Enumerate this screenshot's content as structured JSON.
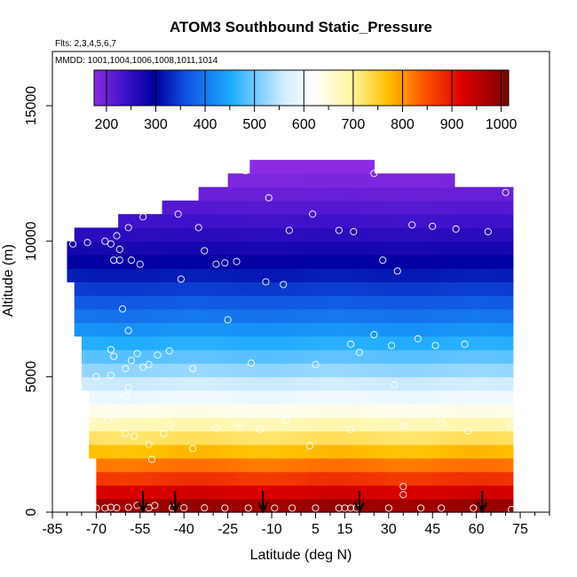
{
  "chart_data": {
    "type": "heatmap",
    "title": "ATOM3 Southbound Static_Pressure",
    "flights_label": "Flts: 2,3,4,5,6,7",
    "dates_label": "MMDD: 1001,1004,1006,1008,1011,1014",
    "xlabel": "Latitude (deg N)",
    "ylabel": "Altitude (m)",
    "xlim": [
      -85,
      85
    ],
    "ylim": [
      0,
      17000
    ],
    "x_ticks": [
      -85,
      -70,
      -55,
      -40,
      -25,
      -10,
      5,
      15,
      30,
      45,
      60,
      75
    ],
    "y_ticks": [
      0,
      5000,
      10000,
      15000
    ],
    "colorbar": {
      "min": 175,
      "max": 1015,
      "ticks": [
        200,
        300,
        400,
        500,
        600,
        700,
        800,
        900,
        1000
      ],
      "stops": [
        {
          "v": 175,
          "c": "#8a2be2"
        },
        {
          "v": 240,
          "c": "#3a10c8"
        },
        {
          "v": 300,
          "c": "#0000a0"
        },
        {
          "v": 360,
          "c": "#1050e0"
        },
        {
          "v": 450,
          "c": "#1aaaff"
        },
        {
          "v": 560,
          "c": "#d2ecff"
        },
        {
          "v": 620,
          "c": "#ffffff"
        },
        {
          "v": 700,
          "c": "#fff49a"
        },
        {
          "v": 770,
          "c": "#ffc000"
        },
        {
          "v": 840,
          "c": "#ff5a00"
        },
        {
          "v": 920,
          "c": "#dd0000"
        },
        {
          "v": 1015,
          "c": "#7a0000"
        }
      ]
    },
    "pressure_profile": [
      {
        "alt": 0,
        "p": 1012
      },
      {
        "alt": 1000,
        "p": 899
      },
      {
        "alt": 2000,
        "p": 795
      },
      {
        "alt": 3000,
        "p": 701
      },
      {
        "alt": 4000,
        "p": 616
      },
      {
        "alt": 5000,
        "p": 540
      },
      {
        "alt": 6000,
        "p": 472
      },
      {
        "alt": 7000,
        "p": 411
      },
      {
        "alt": 8000,
        "p": 356
      },
      {
        "alt": 9000,
        "p": 308
      },
      {
        "alt": 10000,
        "p": 265
      },
      {
        "alt": 11000,
        "p": 227
      },
      {
        "alt": 12000,
        "p": 194
      },
      {
        "alt": 13000,
        "p": 165
      }
    ],
    "curtain_top": [
      {
        "lat": -80,
        "alt": 10000
      },
      {
        "lat": -70,
        "alt": 10300
      },
      {
        "lat": -62,
        "alt": 10600
      },
      {
        "lat": -55,
        "alt": 10900
      },
      {
        "lat": -48,
        "alt": 11100
      },
      {
        "lat": -40,
        "alt": 11400
      },
      {
        "lat": -30,
        "alt": 11800
      },
      {
        "lat": -25,
        "alt": 12100
      },
      {
        "lat": -20,
        "alt": 12500
      },
      {
        "lat": -5,
        "alt": 12900
      },
      {
        "lat": 20,
        "alt": 12900
      },
      {
        "lat": 25,
        "alt": 12500
      },
      {
        "lat": 47,
        "alt": 12200
      },
      {
        "lat": 52,
        "alt": 12100
      },
      {
        "lat": 71,
        "alt": 11900
      }
    ],
    "curtain_bottom": [
      {
        "lat": -80,
        "alt": 9800
      },
      {
        "lat": -74,
        "alt": 5000
      },
      {
        "lat": -71,
        "alt": 2000
      },
      {
        "lat": -70,
        "alt": 0
      },
      {
        "lat": 71,
        "alt": 0
      }
    ],
    "sample_points": [
      {
        "lat": -70,
        "alt": 150
      },
      {
        "lat": -67,
        "alt": 150
      },
      {
        "lat": -65,
        "alt": 180
      },
      {
        "lat": -63,
        "alt": 160
      },
      {
        "lat": -59,
        "alt": 180
      },
      {
        "lat": -56,
        "alt": 250
      },
      {
        "lat": -52,
        "alt": 160
      },
      {
        "lat": -50,
        "alt": 250
      },
      {
        "lat": -44,
        "alt": 160
      },
      {
        "lat": -40,
        "alt": 160
      },
      {
        "lat": -33,
        "alt": 160
      },
      {
        "lat": -26,
        "alt": 150
      },
      {
        "lat": -18,
        "alt": 150
      },
      {
        "lat": -9,
        "alt": 150
      },
      {
        "lat": -3,
        "alt": 150
      },
      {
        "lat": 5,
        "alt": 150
      },
      {
        "lat": 13,
        "alt": 150
      },
      {
        "lat": 15,
        "alt": 150
      },
      {
        "lat": 17,
        "alt": 150
      },
      {
        "lat": 19,
        "alt": 150
      },
      {
        "lat": 30,
        "alt": 150
      },
      {
        "lat": 35,
        "alt": 650
      },
      {
        "lat": 35,
        "alt": 950
      },
      {
        "lat": 41,
        "alt": 150
      },
      {
        "lat": 48,
        "alt": 150
      },
      {
        "lat": 59,
        "alt": 150
      },
      {
        "lat": 72,
        "alt": 100
      },
      {
        "lat": -71,
        "alt": 3300
      },
      {
        "lat": -66,
        "alt": 3400
      },
      {
        "lat": -64,
        "alt": 3500
      },
      {
        "lat": -60,
        "alt": 2900
      },
      {
        "lat": -57,
        "alt": 2800
      },
      {
        "lat": -52,
        "alt": 2500
      },
      {
        "lat": -51,
        "alt": 1950
      },
      {
        "lat": -47,
        "alt": 2900
      },
      {
        "lat": -45,
        "alt": 3200
      },
      {
        "lat": -37,
        "alt": 2350
      },
      {
        "lat": -29,
        "alt": 3100
      },
      {
        "lat": -21,
        "alt": 3200
      },
      {
        "lat": -14,
        "alt": 3050
      },
      {
        "lat": -5,
        "alt": 3400
      },
      {
        "lat": 3,
        "alt": 2450
      },
      {
        "lat": 17,
        "alt": 3050
      },
      {
        "lat": 35,
        "alt": 3200
      },
      {
        "lat": 48,
        "alt": 3300
      },
      {
        "lat": 57,
        "alt": 3000
      },
      {
        "lat": 72,
        "alt": 3200
      },
      {
        "lat": 5,
        "alt": 3600
      },
      {
        "lat": 34,
        "alt": 4150
      },
      {
        "lat": -70,
        "alt": 5000
      },
      {
        "lat": -65,
        "alt": 5050
      },
      {
        "lat": -60,
        "alt": 5300
      },
      {
        "lat": -58,
        "alt": 5600
      },
      {
        "lat": -56,
        "alt": 5850
      },
      {
        "lat": -54,
        "alt": 5350
      },
      {
        "lat": -52,
        "alt": 5450
      },
      {
        "lat": -49,
        "alt": 5800
      },
      {
        "lat": -45,
        "alt": 5950
      },
      {
        "lat": -37,
        "alt": 5300
      },
      {
        "lat": -17,
        "alt": 5500
      },
      {
        "lat": 5,
        "alt": 5450
      },
      {
        "lat": 17,
        "alt": 6200
      },
      {
        "lat": 20,
        "alt": 5900
      },
      {
        "lat": 25,
        "alt": 6550
      },
      {
        "lat": 31,
        "alt": 6150
      },
      {
        "lat": 40,
        "alt": 6400
      },
      {
        "lat": 46,
        "alt": 6150
      },
      {
        "lat": 56,
        "alt": 6200
      },
      {
        "lat": 32,
        "alt": 4700
      },
      {
        "lat": -59,
        "alt": 4600
      },
      {
        "lat": -60,
        "alt": 4300
      },
      {
        "lat": -65,
        "alt": 6000
      },
      {
        "lat": -64,
        "alt": 5750
      },
      {
        "lat": -59,
        "alt": 6700
      },
      {
        "lat": -61,
        "alt": 7500
      },
      {
        "lat": -25,
        "alt": 7100
      },
      {
        "lat": -6,
        "alt": 8400
      },
      {
        "lat": -12,
        "alt": 8500
      },
      {
        "lat": -41,
        "alt": 8600
      },
      {
        "lat": -26,
        "alt": 9200
      },
      {
        "lat": -29,
        "alt": 9150
      },
      {
        "lat": -33,
        "alt": 9650
      },
      {
        "lat": -22,
        "alt": 9250
      },
      {
        "lat": -55,
        "alt": 9150
      },
      {
        "lat": -58,
        "alt": 9300
      },
      {
        "lat": -62,
        "alt": 9300
      },
      {
        "lat": -64,
        "alt": 9300
      },
      {
        "lat": -62,
        "alt": 9700
      },
      {
        "lat": -65,
        "alt": 9900
      },
      {
        "lat": -67,
        "alt": 10000
      },
      {
        "lat": -63,
        "alt": 10200
      },
      {
        "lat": -59,
        "alt": 10500
      },
      {
        "lat": -54,
        "alt": 10900
      },
      {
        "lat": -42,
        "alt": 11000
      },
      {
        "lat": -35,
        "alt": 10500
      },
      {
        "lat": -78,
        "alt": 9900
      },
      {
        "lat": -73,
        "alt": 9950
      },
      {
        "lat": -4,
        "alt": 10400
      },
      {
        "lat": 4,
        "alt": 11000
      },
      {
        "lat": 13,
        "alt": 10400
      },
      {
        "lat": 18,
        "alt": 10350
      },
      {
        "lat": 28,
        "alt": 9300
      },
      {
        "lat": 33,
        "alt": 8900
      },
      {
        "lat": 38,
        "alt": 10600
      },
      {
        "lat": 45,
        "alt": 10550
      },
      {
        "lat": 53,
        "alt": 10450
      },
      {
        "lat": 64,
        "alt": 10350
      },
      {
        "lat": -11,
        "alt": 11600
      },
      {
        "lat": -19,
        "alt": 12600
      },
      {
        "lat": 25,
        "alt": 12500
      },
      {
        "lat": 70,
        "alt": 11800
      }
    ],
    "arrow_lats": [
      -54,
      -43,
      -13,
      20,
      62
    ]
  }
}
